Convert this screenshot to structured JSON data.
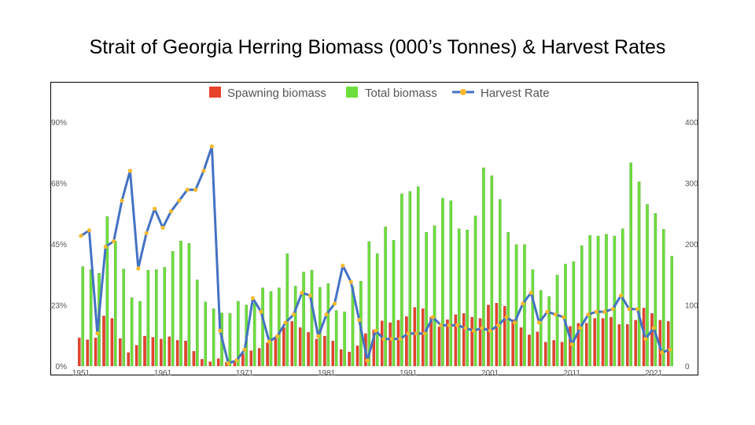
{
  "title": "Strait of Georgia Herring Biomass (000’s Tonnes) & Harvest Rates",
  "chart_data": {
    "type": "bar",
    "title": "Strait of Georgia Herring Biomass (000’s Tonnes) & Harvest Rates",
    "x": [
      1951,
      1952,
      1953,
      1954,
      1955,
      1956,
      1957,
      1958,
      1959,
      1960,
      1961,
      1962,
      1963,
      1964,
      1965,
      1966,
      1967,
      1968,
      1969,
      1970,
      1971,
      1972,
      1973,
      1974,
      1975,
      1976,
      1977,
      1978,
      1979,
      1980,
      1981,
      1982,
      1983,
      1984,
      1985,
      1986,
      1987,
      1988,
      1989,
      1990,
      1991,
      1992,
      1993,
      1994,
      1995,
      1996,
      1997,
      1998,
      1999,
      2000,
      2001,
      2002,
      2003,
      2004,
      2005,
      2006,
      2007,
      2008,
      2009,
      2010,
      2011,
      2012,
      2013,
      2014,
      2015,
      2016,
      2017,
      2018,
      2019,
      2020,
      2021,
      2022,
      2023
    ],
    "x_tick_labels": [
      "1951",
      "1961",
      "1971",
      "1981",
      "1991",
      "2001",
      "2011",
      "2021"
    ],
    "y_left_ticks": [
      "0%",
      "23%",
      "45%",
      "68%",
      "90%"
    ],
    "y_left_range": [
      0,
      90
    ],
    "y_right_ticks": [
      "0",
      "100",
      "200",
      "300",
      "400"
    ],
    "y_right_range": [
      0,
      400
    ],
    "legend": [
      "Spawning biomass",
      "Total biomass",
      "Harvest Rate"
    ],
    "legend_position": "top",
    "grid": false,
    "series": [
      {
        "name": "Spawning biomass",
        "type": "bar",
        "axis": "right",
        "color": "#e8422b",
        "values": [
          46,
          43,
          46,
          82,
          78,
          45,
          22,
          34,
          49,
          47,
          44,
          48,
          42,
          41,
          24,
          11,
          7,
          12,
          6,
          9,
          20,
          25,
          29,
          38,
          45,
          63,
          73,
          63,
          55,
          44,
          49,
          41,
          27,
          23,
          33,
          53,
          59,
          74,
          71,
          75,
          81,
          96,
          94,
          80,
          64,
          76,
          84,
          86,
          80,
          78,
          100,
          103,
          98,
          76,
          63,
          51,
          56,
          39,
          42,
          39,
          65,
          70,
          70,
          78,
          78,
          80,
          68,
          68,
          75,
          95,
          86,
          75,
          73
        ],
        "note": "values in 000's tonnes"
      },
      {
        "name": "Total biomass",
        "type": "bar",
        "axis": "right",
        "color": "#6ddf3c",
        "values": [
          163,
          158,
          152,
          245,
          205,
          159,
          112,
          106,
          157,
          158,
          162,
          188,
          205,
          201,
          141,
          105,
          94,
          87,
          86,
          106,
          100,
          103,
          128,
          122,
          128,
          184,
          131,
          154,
          157,
          129,
          135,
          91,
          89,
          130,
          139,
          204,
          184,
          228,
          206,
          282,
          286,
          294,
          219,
          230,
          275,
          271,
          225,
          223,
          246,
          325,
          312,
          273,
          219,
          199,
          199,
          158,
          124,
          114,
          149,
          167,
          171,
          197,
          214,
          213,
          216,
          213,
          225,
          333,
          302,
          265,
          250,
          224,
          180
        ],
        "note": "values in 000's tonnes"
      },
      {
        "name": "Harvest Rate",
        "type": "line",
        "axis": "left",
        "color": "#4472c4",
        "marker_color": "#f5b92c",
        "values": [
          48,
          50,
          12,
          44,
          46,
          61,
          72,
          36,
          49,
          58,
          51,
          57,
          61,
          65,
          65,
          72,
          81,
          13,
          1,
          2,
          6,
          25,
          20,
          9,
          11,
          16,
          19,
          27,
          26,
          11,
          19,
          23,
          37,
          31,
          17,
          2,
          13,
          10,
          10,
          10,
          12,
          12,
          12,
          18,
          15,
          15,
          15,
          14,
          13,
          14,
          13,
          15,
          18,
          16,
          23,
          27,
          16,
          20,
          19,
          18,
          8,
          14,
          19,
          20,
          20,
          21,
          26,
          21,
          21,
          10,
          14,
          5,
          6
        ],
        "note": "values in percent"
      }
    ]
  }
}
